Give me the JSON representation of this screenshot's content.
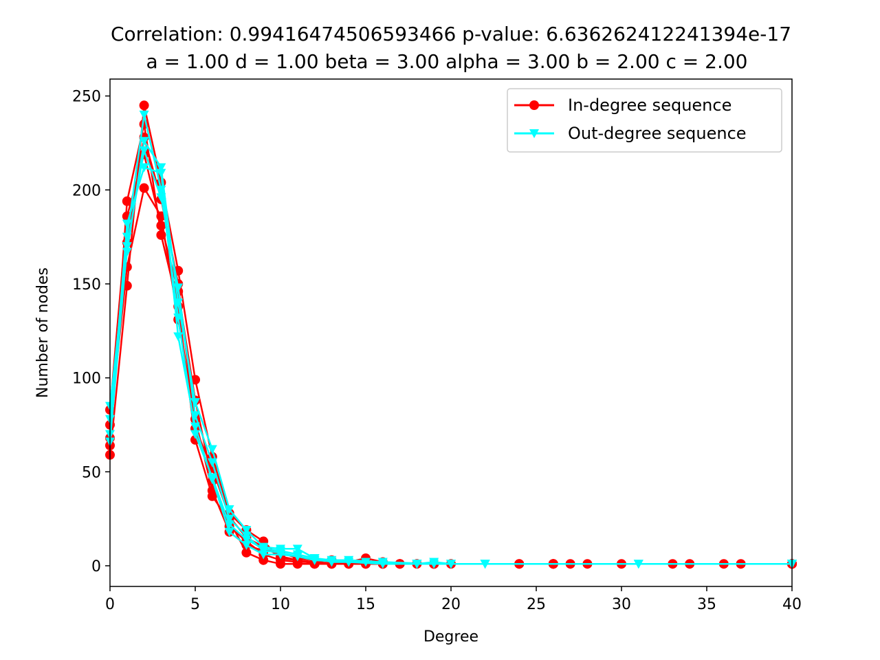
{
  "chart_data": {
    "type": "line",
    "title": "Correlation: 0.99416474506593466 p-value: 6.636262412241394e-17",
    "subtitle": "a = 1.00 d = 1.00 beta = 3.00 alpha = 3.00 b = 2.00 c = 2.00",
    "xlabel": "Degree",
    "ylabel": "Number of nodes",
    "xlim": [
      0,
      40
    ],
    "ylim": [
      -11,
      259
    ],
    "xticks": [
      0,
      5,
      10,
      15,
      20,
      25,
      30,
      35,
      40
    ],
    "yticks": [
      0,
      50,
      100,
      150,
      200,
      250
    ],
    "grid": false,
    "legend_position": "top-right",
    "series": [
      {
        "name": "In-degree sequence",
        "color": "#ff0000",
        "marker": "circle",
        "runs": [
          [
            [
              0,
              59
            ],
            [
              1,
              149
            ],
            [
              2,
              245
            ],
            [
              3,
              204
            ],
            [
              4,
              157
            ],
            [
              5,
              99
            ],
            [
              6,
              58
            ],
            [
              7,
              28
            ],
            [
              8,
              19
            ],
            [
              9,
              13
            ],
            [
              10,
              4
            ],
            [
              11,
              3
            ],
            [
              12,
              2
            ],
            [
              13,
              3
            ],
            [
              14,
              2
            ],
            [
              15,
              4
            ],
            [
              16,
              2
            ],
            [
              17,
              1
            ],
            [
              19,
              1
            ],
            [
              24,
              1
            ],
            [
              26,
              1
            ],
            [
              28,
              1
            ],
            [
              33,
              1
            ],
            [
              36,
              1
            ],
            [
              40,
              1
            ]
          ],
          [
            [
              0,
              64
            ],
            [
              1,
              194
            ],
            [
              2,
              235
            ],
            [
              3,
              176
            ],
            [
              4,
              138
            ],
            [
              5,
              67
            ],
            [
              6,
              37
            ],
            [
              7,
              24
            ],
            [
              8,
              7
            ],
            [
              9,
              3
            ],
            [
              10,
              1
            ],
            [
              11,
              1
            ],
            [
              12,
              1
            ],
            [
              13,
              1
            ],
            [
              15,
              1
            ],
            [
              16,
              1
            ],
            [
              17,
              1
            ],
            [
              19,
              1
            ],
            [
              26,
              1
            ],
            [
              27,
              1
            ],
            [
              30,
              1
            ],
            [
              34,
              1
            ],
            [
              37,
              1
            ],
            [
              40,
              1
            ]
          ],
          [
            [
              0,
              75
            ],
            [
              1,
              159
            ],
            [
              2,
              201
            ],
            [
              3,
              186
            ],
            [
              4,
              131
            ],
            [
              5,
              78
            ],
            [
              6,
              40
            ],
            [
              7,
              18
            ],
            [
              8,
              11
            ],
            [
              9,
              8
            ],
            [
              10,
              7
            ],
            [
              11,
              4
            ],
            [
              12,
              3
            ],
            [
              13,
              2
            ],
            [
              14,
              1
            ],
            [
              15,
              1
            ],
            [
              16,
              1
            ],
            [
              18,
              1
            ],
            [
              20,
              1
            ],
            [
              26,
              1
            ],
            [
              40,
              1
            ]
          ],
          [
            [
              0,
              83
            ],
            [
              1,
              186
            ],
            [
              2,
              219
            ],
            [
              3,
              181
            ],
            [
              4,
              146
            ],
            [
              5,
              88
            ],
            [
              6,
              45
            ],
            [
              7,
              21
            ],
            [
              8,
              13
            ],
            [
              9,
              6
            ],
            [
              10,
              3
            ],
            [
              11,
              2
            ],
            [
              12,
              2
            ],
            [
              13,
              1
            ],
            [
              14,
              2
            ],
            [
              15,
              2
            ],
            [
              17,
              1
            ],
            [
              19,
              1
            ],
            [
              24,
              1
            ],
            [
              40,
              1
            ]
          ],
          [
            [
              0,
              68
            ],
            [
              1,
              172
            ],
            [
              2,
              228
            ],
            [
              3,
              195
            ],
            [
              4,
              150
            ],
            [
              5,
              73
            ],
            [
              6,
              52
            ],
            [
              7,
              26
            ],
            [
              8,
              15
            ],
            [
              9,
              10
            ],
            [
              10,
              5
            ],
            [
              11,
              3
            ],
            [
              12,
              1
            ],
            [
              14,
              1
            ],
            [
              16,
              1
            ],
            [
              19,
              1
            ],
            [
              26,
              1
            ],
            [
              40,
              1
            ]
          ]
        ]
      },
      {
        "name": "Out-degree sequence",
        "color": "#00ffff",
        "marker": "triangle-down",
        "runs": [
          [
            [
              0,
              85
            ],
            [
              1,
              167
            ],
            [
              2,
              226
            ],
            [
              3,
              212
            ],
            [
              4,
              140
            ],
            [
              5,
              87
            ],
            [
              6,
              62
            ],
            [
              7,
              30
            ],
            [
              8,
              19
            ],
            [
              9,
              10
            ],
            [
              10,
              9
            ],
            [
              11,
              9
            ],
            [
              12,
              4
            ],
            [
              13,
              3
            ],
            [
              14,
              3
            ],
            [
              16,
              2
            ],
            [
              18,
              1
            ],
            [
              19,
              2
            ],
            [
              20,
              1
            ],
            [
              22,
              1
            ],
            [
              31,
              1
            ],
            [
              40,
              1
            ]
          ],
          [
            [
              0,
              70
            ],
            [
              1,
              182
            ],
            [
              2,
              212
            ],
            [
              3,
              209
            ],
            [
              4,
              122
            ],
            [
              5,
              74
            ],
            [
              6,
              46
            ],
            [
              7,
              18
            ],
            [
              8,
              11
            ],
            [
              9,
              6
            ],
            [
              10,
              6
            ],
            [
              11,
              5
            ],
            [
              12,
              3
            ],
            [
              14,
              2
            ],
            [
              16,
              1
            ],
            [
              18,
              1
            ],
            [
              22,
              1
            ],
            [
              31,
              1
            ],
            [
              40,
              1
            ]
          ],
          [
            [
              0,
              78
            ],
            [
              1,
              175
            ],
            [
              2,
              240
            ],
            [
              3,
              200
            ],
            [
              4,
              132
            ],
            [
              5,
              70
            ],
            [
              6,
              47
            ],
            [
              7,
              22
            ],
            [
              8,
              14
            ],
            [
              9,
              9
            ],
            [
              10,
              8
            ],
            [
              11,
              6
            ],
            [
              12,
              4
            ],
            [
              13,
              2
            ],
            [
              15,
              2
            ],
            [
              18,
              1
            ],
            [
              20,
              1
            ],
            [
              40,
              1
            ]
          ],
          [
            [
              0,
              66
            ],
            [
              1,
              170
            ],
            [
              2,
              221
            ],
            [
              3,
              196
            ],
            [
              4,
              148
            ],
            [
              5,
              80
            ],
            [
              6,
              55
            ],
            [
              7,
              25
            ],
            [
              8,
              16
            ],
            [
              9,
              8
            ],
            [
              10,
              7
            ],
            [
              11,
              5
            ],
            [
              12,
              3
            ],
            [
              14,
              2
            ],
            [
              16,
              2
            ],
            [
              19,
              1
            ],
            [
              22,
              1
            ],
            [
              40,
              1
            ]
          ]
        ]
      }
    ]
  }
}
